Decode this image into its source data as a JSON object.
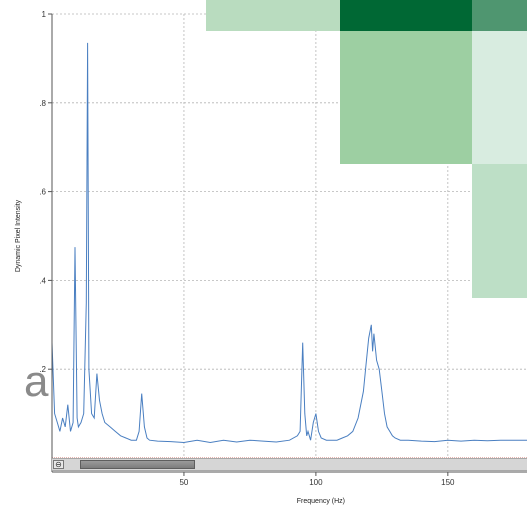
{
  "chart_data": {
    "type": "line",
    "title": "",
    "xlabel": "Frequency (Hz)",
    "ylabel": "Dynamic Pixel Intensity",
    "xlim": [
      0,
      180
    ],
    "ylim": [
      0,
      1
    ],
    "x_ticks": [
      50,
      100,
      150
    ],
    "x_tick_labels": [
      "50",
      "100",
      "150"
    ],
    "y_ticks": [
      0.2,
      0.4,
      0.6,
      0.8,
      1.0
    ],
    "y_tick_labels": [
      ".2",
      ".4",
      ".6",
      ".8",
      "1"
    ],
    "grid": true,
    "series": [
      {
        "color": "#4a7fc1",
        "x": [
          0,
          0.5,
          1,
          2,
          3,
          4,
          5,
          6,
          7,
          8,
          8.7,
          9.5,
          10,
          11,
          12,
          13,
          13.5,
          14,
          15,
          16,
          17,
          18,
          19,
          20,
          22,
          24,
          26,
          28,
          30,
          32,
          33,
          34,
          35,
          36,
          37,
          40,
          45,
          50,
          55,
          60,
          65,
          70,
          75,
          80,
          85,
          90,
          93,
          94,
          95,
          95.8,
          96.5,
          97,
          98,
          99,
          100,
          101,
          102,
          104,
          106,
          108,
          110,
          112,
          114,
          116,
          118,
          119,
          120,
          121,
          121.5,
          122,
          123,
          124,
          125,
          126,
          127,
          128,
          129,
          130,
          132,
          135,
          140,
          145,
          150,
          155,
          160,
          165,
          170,
          175,
          180
        ],
        "y": [
          0.26,
          0.18,
          0.1,
          0.08,
          0.06,
          0.09,
          0.07,
          0.12,
          0.06,
          0.08,
          0.475,
          0.09,
          0.07,
          0.08,
          0.1,
          0.35,
          0.935,
          0.2,
          0.1,
          0.09,
          0.19,
          0.13,
          0.1,
          0.08,
          0.07,
          0.06,
          0.05,
          0.045,
          0.04,
          0.04,
          0.06,
          0.145,
          0.07,
          0.045,
          0.04,
          0.038,
          0.037,
          0.035,
          0.04,
          0.035,
          0.04,
          0.036,
          0.04,
          0.038,
          0.036,
          0.04,
          0.05,
          0.06,
          0.26,
          0.1,
          0.05,
          0.06,
          0.04,
          0.08,
          0.1,
          0.06,
          0.045,
          0.04,
          0.04,
          0.04,
          0.045,
          0.05,
          0.06,
          0.09,
          0.15,
          0.21,
          0.27,
          0.3,
          0.24,
          0.28,
          0.22,
          0.2,
          0.15,
          0.1,
          0.07,
          0.06,
          0.05,
          0.045,
          0.04,
          0.04,
          0.038,
          0.037,
          0.04,
          0.038,
          0.04,
          0.039,
          0.04,
          0.04,
          0.04
        ]
      }
    ]
  },
  "overlay": {
    "letter": "a",
    "tile_colors": [
      "#b9dcbf",
      "#006834",
      "#4f9670",
      "#9dcfa2",
      "#d8ece0",
      "#bddfc6"
    ]
  },
  "scrollbar": {
    "reset_glyph": "⊖",
    "thumb_position": 0.03,
    "thumb_fraction": 0.25
  }
}
